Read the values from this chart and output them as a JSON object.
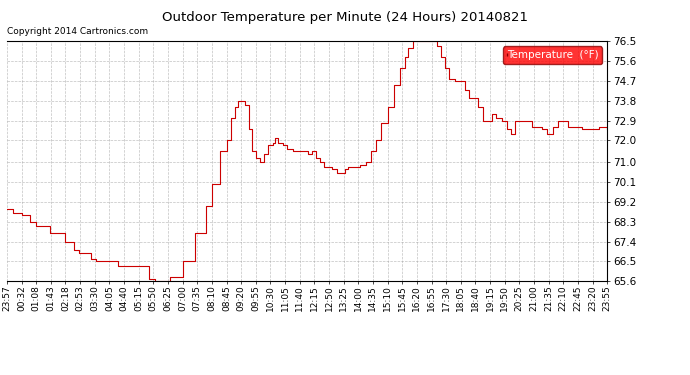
{
  "title": "Outdoor Temperature per Minute (24 Hours) 20140821",
  "copyright": "Copyright 2014 Cartronics.com",
  "legend_label": "Temperature  (°F)",
  "line_color": "#cc0000",
  "background_color": "#ffffff",
  "grid_color": "#999999",
  "ylim": [
    65.6,
    76.5
  ],
  "yticks": [
    65.6,
    66.5,
    67.4,
    68.3,
    69.2,
    70.1,
    71.0,
    72.0,
    72.9,
    73.8,
    74.7,
    75.6,
    76.5
  ],
  "xtick_labels": [
    "23:57",
    "00:32",
    "01:08",
    "01:43",
    "02:18",
    "02:53",
    "03:30",
    "04:05",
    "04:40",
    "05:15",
    "05:50",
    "06:25",
    "07:00",
    "07:35",
    "08:10",
    "08:45",
    "09:20",
    "09:55",
    "10:30",
    "11:05",
    "11:40",
    "12:15",
    "12:50",
    "13:25",
    "14:00",
    "14:35",
    "15:10",
    "15:45",
    "16:20",
    "16:55",
    "17:30",
    "18:05",
    "18:40",
    "19:15",
    "19:50",
    "20:25",
    "21:00",
    "21:35",
    "22:10",
    "22:45",
    "23:20",
    "23:55"
  ],
  "keypoints": [
    [
      0,
      68.9
    ],
    [
      15,
      68.7
    ],
    [
      35,
      68.6
    ],
    [
      55,
      68.3
    ],
    [
      70,
      68.1
    ],
    [
      103,
      67.8
    ],
    [
      138,
      67.4
    ],
    [
      160,
      67.0
    ],
    [
      173,
      66.9
    ],
    [
      200,
      66.6
    ],
    [
      213,
      66.5
    ],
    [
      245,
      66.5
    ],
    [
      265,
      66.3
    ],
    [
      280,
      66.3
    ],
    [
      300,
      66.3
    ],
    [
      315,
      66.3
    ],
    [
      340,
      65.7
    ],
    [
      355,
      65.6
    ],
    [
      365,
      65.6
    ],
    [
      375,
      65.6
    ],
    [
      390,
      65.8
    ],
    [
      420,
      66.5
    ],
    [
      450,
      67.8
    ],
    [
      475,
      69.0
    ],
    [
      490,
      70.0
    ],
    [
      510,
      71.5
    ],
    [
      525,
      72.0
    ],
    [
      535,
      73.0
    ],
    [
      545,
      73.5
    ],
    [
      552,
      73.8
    ],
    [
      560,
      73.8
    ],
    [
      568,
      73.6
    ],
    [
      578,
      72.5
    ],
    [
      585,
      71.5
    ],
    [
      595,
      71.2
    ],
    [
      605,
      71.0
    ],
    [
      615,
      71.4
    ],
    [
      625,
      71.8
    ],
    [
      635,
      71.9
    ],
    [
      640,
      72.1
    ],
    [
      648,
      71.9
    ],
    [
      660,
      71.8
    ],
    [
      670,
      71.6
    ],
    [
      685,
      71.5
    ],
    [
      700,
      71.5
    ],
    [
      712,
      71.5
    ],
    [
      720,
      71.4
    ],
    [
      730,
      71.5
    ],
    [
      738,
      71.2
    ],
    [
      748,
      71.0
    ],
    [
      758,
      70.8
    ],
    [
      768,
      70.8
    ],
    [
      778,
      70.7
    ],
    [
      788,
      70.5
    ],
    [
      798,
      70.5
    ],
    [
      808,
      70.7
    ],
    [
      815,
      70.8
    ],
    [
      825,
      70.8
    ],
    [
      835,
      70.8
    ],
    [
      845,
      70.9
    ],
    [
      858,
      71.0
    ],
    [
      870,
      71.5
    ],
    [
      882,
      72.0
    ],
    [
      895,
      72.8
    ],
    [
      910,
      73.5
    ],
    [
      925,
      74.5
    ],
    [
      940,
      75.3
    ],
    [
      952,
      75.8
    ],
    [
      960,
      76.2
    ],
    [
      970,
      76.5
    ],
    [
      990,
      76.5
    ],
    [
      1010,
      76.5
    ],
    [
      1020,
      76.5
    ],
    [
      1028,
      76.3
    ],
    [
      1038,
      75.8
    ],
    [
      1048,
      75.3
    ],
    [
      1058,
      74.8
    ],
    [
      1070,
      74.7
    ],
    [
      1085,
      74.7
    ],
    [
      1095,
      74.3
    ],
    [
      1105,
      73.9
    ],
    [
      1115,
      73.9
    ],
    [
      1125,
      73.5
    ],
    [
      1138,
      72.9
    ],
    [
      1150,
      72.9
    ],
    [
      1160,
      73.2
    ],
    [
      1170,
      73.0
    ],
    [
      1183,
      72.9
    ],
    [
      1195,
      72.5
    ],
    [
      1205,
      72.3
    ],
    [
      1215,
      72.9
    ],
    [
      1228,
      72.9
    ],
    [
      1240,
      72.9
    ],
    [
      1255,
      72.6
    ],
    [
      1268,
      72.6
    ],
    [
      1278,
      72.5
    ],
    [
      1290,
      72.3
    ],
    [
      1305,
      72.6
    ],
    [
      1318,
      72.9
    ],
    [
      1330,
      72.9
    ],
    [
      1342,
      72.6
    ],
    [
      1360,
      72.6
    ],
    [
      1375,
      72.5
    ],
    [
      1395,
      72.5
    ],
    [
      1415,
      72.6
    ],
    [
      1435,
      72.5
    ]
  ]
}
